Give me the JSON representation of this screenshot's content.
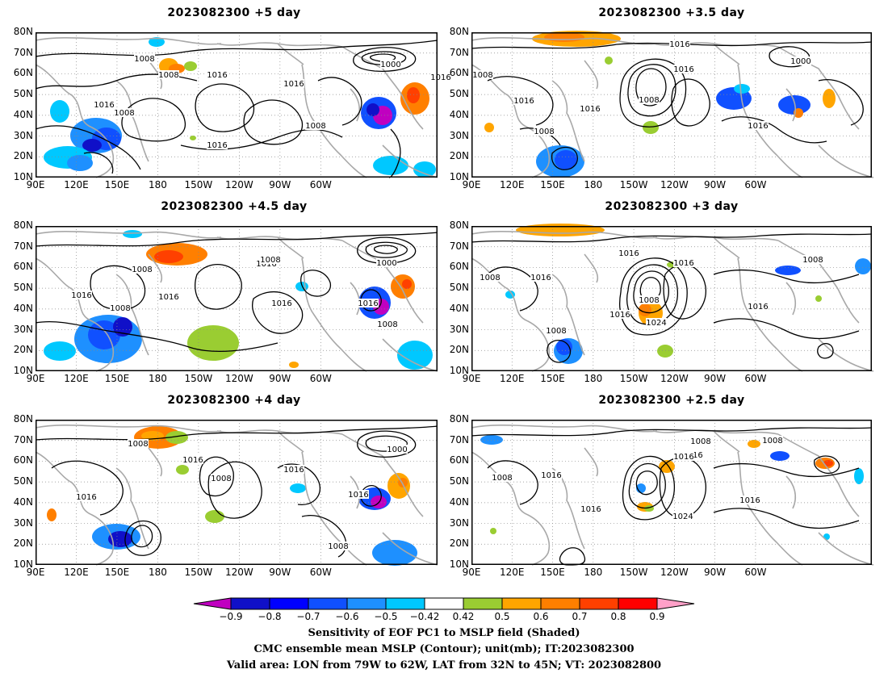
{
  "panels": [
    {
      "title": "2023082300  +5 day",
      "id": "p5"
    },
    {
      "title": "2023082300  +3.5 day",
      "id": "p35"
    },
    {
      "title": "2023082300  +4.5 day",
      "id": "p45"
    },
    {
      "title": "2023082300  +3 day",
      "id": "p3"
    },
    {
      "title": "2023082300  +4 day",
      "id": "p4"
    },
    {
      "title": "2023082300  +2.5 day",
      "id": "p25"
    }
  ],
  "lat_labels": [
    "80N",
    "70N",
    "60N",
    "50N",
    "40N",
    "30N",
    "20N",
    "10N"
  ],
  "lon_labels": [
    "90E",
    "120E",
    "150E",
    "180",
    "150W",
    "120W",
    "90W",
    "60W"
  ],
  "contour_labels": {
    "p5": [
      "1008",
      "1000",
      "1016",
      "1008",
      "1016",
      "1016",
      "1016",
      "1008",
      "1008",
      "1016"
    ],
    "p35": [
      "1016",
      "1000",
      "1008",
      "1016",
      "1008",
      "1016",
      "1016",
      "1008",
      "1016"
    ],
    "p45": [
      "1008",
      "1016",
      "1000",
      "1008",
      "1016",
      "1016",
      "1008",
      "1016",
      "1016",
      "1008"
    ],
    "p3": [
      "1016",
      "1008",
      "1016",
      "1008",
      "1016",
      "1008",
      "1024",
      "1008",
      "1016",
      "1016"
    ],
    "p4": [
      "1008",
      "1016",
      "1000",
      "1016",
      "1008",
      "1016",
      "1016",
      "1008"
    ],
    "p25": [
      "1008",
      "1016",
      "1008",
      "1016",
      "1016",
      "1008",
      "1024",
      "1016",
      "1016"
    ]
  },
  "colorbar": {
    "labels": [
      "−0.9",
      "−0.8",
      "−0.7",
      "−0.6",
      "−0.5",
      "−0.42",
      "0.42",
      "0.5",
      "0.6",
      "0.7",
      "0.8",
      "0.9"
    ],
    "colors": [
      "#c000c0",
      "#1010c8",
      "#0000ff",
      "#1050ff",
      "#1e90ff",
      "#00c8ff",
      "#ffffff",
      "#9acd32",
      "#ffa500",
      "#ff7f00",
      "#ff4000",
      "#ff0000",
      "#ffa0c8"
    ]
  },
  "caption": {
    "line1": "Sensitivity of EOF PC1 to MSLP field (Shaded)",
    "line2": "CMC ensemble mean MSLP (Contour); unit(mb); IT:2023082300",
    "line3": "Valid area: LON from 79W to 62W, LAT from 32N to 45N; VT: 2023082800"
  }
}
